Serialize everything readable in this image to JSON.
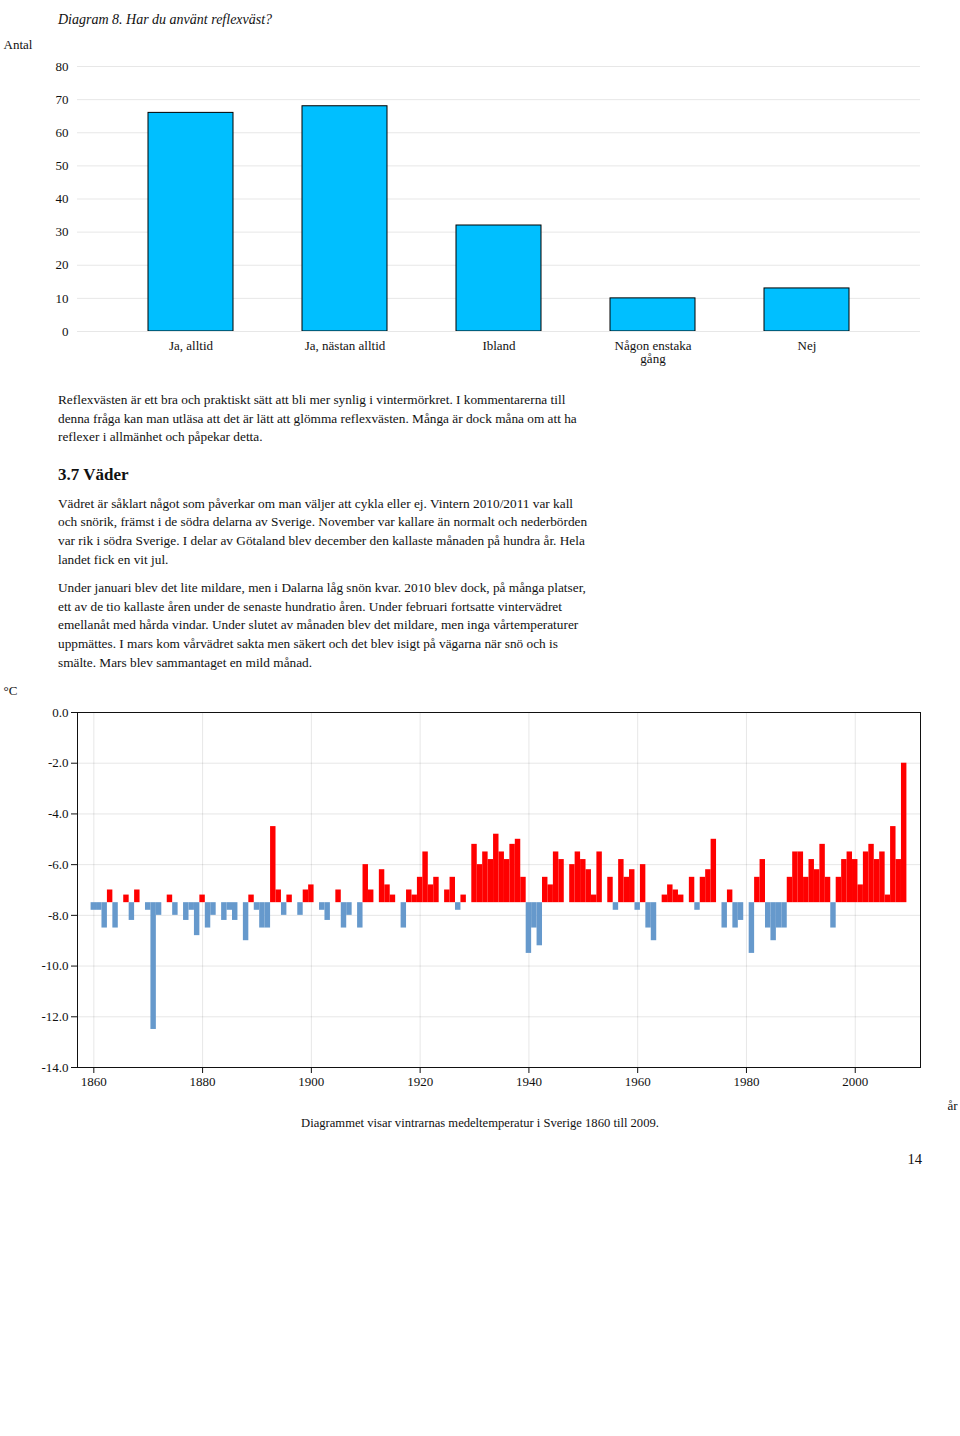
{
  "page_title": "Diagram 8. Har du använt reflexväst?",
  "text_block1": "Reflexvästen är ett bra och praktiskt sätt att bli mer synlig i vintermörkret. I kommentarerna till\ndenna fråga kan man utläsa att det är lätt att glömma reflexvästen. Många är dock måna om att ha\nreflexer i allmänhet och påpekar detta.",
  "section_title": "3.7 Väder",
  "text_block2": "Vädret är såklart något som påverkar om man väljer att cykla eller ej. Vintern 2010/2011 var kall\noch snörik, främst i de södra delarna av Sverige. November var kallare än normalt och nederbörden\nvar rik i södra Sverige. I delar av Götaland blev december den kallaste månaden på hundra år. Hela\nlandet fick en vit jul.",
  "text_block3": "Under januari blev det lite mildare, men i Dalarna låg snön kvar. 2010 blev dock, på många platser,\nett av de tio kallaste åren under de senaste hundratio åren. Under februari fortsatte vintervädret\nemellanåt med hårda vindar. Under slutet av månaden blev det mildare, men inga vårtemperaturer\nuppmättes. I mars kom vårvädret sakta men säkert och det blev isigt på vägarna när snö och is\nsmälte. Mars blev sammantaget en mild månad.",
  "page_number": "14",
  "chart_data": [
    {
      "type": "bar",
      "categories": [
        "Ja, alltid",
        "Ja, nästan alltid",
        "Ibland",
        "Någon enstaka\ngång",
        "Nej"
      ],
      "values": [
        66,
        68,
        32,
        10,
        13
      ],
      "color": "#00BFFF",
      "ylabel": "Antal",
      "ylim": [
        0,
        80
      ],
      "yticks": [
        0,
        10,
        20,
        30,
        40,
        50,
        60,
        70,
        80
      ],
      "grid": "y"
    },
    {
      "type": "bar",
      "x": [
        1860,
        1861,
        1862,
        1863,
        1864,
        1865,
        1866,
        1867,
        1868,
        1869,
        1870,
        1871,
        1872,
        1873,
        1874,
        1875,
        1876,
        1877,
        1878,
        1879,
        1880,
        1881,
        1882,
        1883,
        1884,
        1885,
        1886,
        1887,
        1888,
        1889,
        1890,
        1891,
        1892,
        1893,
        1894,
        1895,
        1896,
        1897,
        1898,
        1899,
        1900,
        1901,
        1902,
        1903,
        1904,
        1905,
        1906,
        1907,
        1908,
        1909,
        1910,
        1911,
        1912,
        1913,
        1914,
        1915,
        1916,
        1917,
        1918,
        1919,
        1920,
        1921,
        1922,
        1923,
        1924,
        1925,
        1926,
        1927,
        1928,
        1929,
        1930,
        1931,
        1932,
        1933,
        1934,
        1935,
        1936,
        1937,
        1938,
        1939,
        1940,
        1941,
        1942,
        1943,
        1944,
        1945,
        1946,
        1947,
        1948,
        1949,
        1950,
        1951,
        1952,
        1953,
        1954,
        1955,
        1956,
        1957,
        1958,
        1959,
        1960,
        1961,
        1962,
        1963,
        1964,
        1965,
        1966,
        1967,
        1968,
        1969,
        1970,
        1971,
        1972,
        1973,
        1974,
        1975,
        1976,
        1977,
        1978,
        1979,
        1980,
        1981,
        1982,
        1983,
        1984,
        1985,
        1986,
        1987,
        1988,
        1989,
        1990,
        1991,
        1992,
        1993,
        1994,
        1995,
        1996,
        1997,
        1998,
        1999,
        2000,
        2001,
        2002,
        2003,
        2004,
        2005,
        2006,
        2007,
        2008,
        2009
      ],
      "values": [
        -7.8,
        -7.8,
        -8.5,
        -7.0,
        -8.5,
        -7.5,
        -7.2,
        -8.2,
        -7.0,
        -7.5,
        -7.8,
        -12.5,
        -8.0,
        -7.5,
        -7.2,
        -8.0,
        -7.5,
        -8.2,
        -7.8,
        -8.8,
        -7.2,
        -8.5,
        -8.0,
        -7.5,
        -8.2,
        -7.8,
        -8.2,
        -7.5,
        -9.0,
        -7.2,
        -7.8,
        -8.5,
        -8.5,
        -4.5,
        -7.0,
        -8.0,
        -7.2,
        -7.5,
        -8.0,
        -7.0,
        -6.8,
        -7.5,
        -7.8,
        -8.2,
        -7.5,
        -7.0,
        -8.5,
        -8.0,
        -7.5,
        -8.5,
        -6.0,
        -7.0,
        -7.5,
        -6.2,
        -6.8,
        -7.2,
        -7.5,
        -8.5,
        -7.0,
        -7.2,
        -6.5,
        -5.5,
        -6.8,
        -6.5,
        -7.5,
        -7.0,
        -6.5,
        -7.8,
        -7.2,
        -7.5,
        -5.2,
        -6.0,
        -5.5,
        -5.8,
        -4.8,
        -5.5,
        -5.8,
        -5.2,
        -5.0,
        -6.5,
        -9.5,
        -8.5,
        -9.2,
        -6.5,
        -6.8,
        -5.5,
        -5.8,
        -7.5,
        -6.0,
        -5.5,
        -5.8,
        -6.2,
        -7.2,
        -5.5,
        -7.5,
        -6.5,
        -7.8,
        -5.8,
        -6.5,
        -6.2,
        -7.8,
        -6.0,
        -8.5,
        -9.0,
        -7.5,
        -7.2,
        -6.8,
        -7.0,
        -7.2,
        -7.5,
        -6.5,
        -7.8,
        -6.5,
        -6.2,
        -5.0,
        -7.5,
        -8.5,
        -7.0,
        -8.5,
        -8.2,
        -7.5,
        -9.5,
        -6.5,
        -5.8,
        -8.5,
        -9.0,
        -8.5,
        -8.5,
        -6.5,
        -5.5,
        -5.5,
        -6.5,
        -5.8,
        -6.2,
        -5.2,
        -6.5,
        -8.5,
        -6.5,
        -5.8,
        -5.5,
        -5.8,
        -6.8,
        -5.5,
        -5.2,
        -5.8,
        -5.5,
        -7.2,
        -4.5,
        -5.8,
        -2.0
      ],
      "baseline": -7.5,
      "colors": [
        "#6699CC",
        "#6699CC",
        "#6699CC",
        "red",
        "#6699CC",
        "red",
        "red",
        "#6699CC",
        "red",
        "red",
        "#6699CC",
        "#6699CC",
        "#6699CC",
        "red",
        "red",
        "#6699CC",
        "red",
        "#6699CC",
        "#6699CC",
        "#6699CC",
        "red",
        "#6699CC",
        "#6699CC",
        "red",
        "#6699CC",
        "#6699CC",
        "#6699CC",
        "red",
        "#6699CC",
        "red",
        "#6699CC",
        "#6699CC",
        "#6699CC",
        "red",
        "red",
        "#6699CC",
        "red",
        "red",
        "#6699CC",
        "red",
        "red",
        "red",
        "#6699CC",
        "#6699CC",
        "red",
        "red",
        "#6699CC",
        "#6699CC",
        "red",
        "#6699CC",
        "red",
        "red",
        "red",
        "red",
        "red",
        "red",
        "red",
        "#6699CC",
        "red",
        "red",
        "red",
        "red",
        "red",
        "red",
        "red",
        "red",
        "red",
        "#6699CC",
        "red",
        "red",
        "red",
        "red",
        "red",
        "red",
        "red",
        "red",
        "red",
        "red",
        "red",
        "red",
        "#6699CC",
        "#6699CC",
        "#6699CC",
        "red",
        "red",
        "red",
        "red",
        "red",
        "red",
        "red",
        "red",
        "red",
        "red",
        "red",
        "red",
        "red",
        "#6699CC",
        "red",
        "red",
        "red",
        "#6699CC",
        "red",
        "#6699CC",
        "#6699CC",
        "red",
        "red",
        "red",
        "red",
        "red",
        "red",
        "red",
        "#6699CC",
        "red",
        "red",
        "red",
        "red",
        "#6699CC",
        "red",
        "#6699CC",
        "#6699CC",
        "red",
        "#6699CC",
        "red",
        "red",
        "#6699CC",
        "#6699CC",
        "#6699CC",
        "#6699CC",
        "red",
        "red",
        "red",
        "red",
        "red",
        "red",
        "red",
        "red",
        "#6699CC",
        "red",
        "red",
        "red",
        "red",
        "red",
        "red",
        "red",
        "red",
        "red",
        "red",
        "red",
        "red",
        "red"
      ],
      "xlabel": "år",
      "ylabel": "°C",
      "xlim": [
        1857,
        2012
      ],
      "ylim": [
        -14.0,
        0.0
      ],
      "xticks": [
        1860,
        1880,
        1900,
        1920,
        1940,
        1960,
        1980,
        2000
      ],
      "yticks": [
        {
          "value": 0.0,
          "label": "0.0"
        },
        {
          "value": -2.0,
          "label": "-2.0"
        },
        {
          "value": -4.0,
          "label": "-4.0"
        },
        {
          "value": -6.0,
          "label": "-6.0"
        },
        {
          "value": -8.0,
          "label": "-8.0"
        },
        {
          "value": -10.0,
          "label": "-10.0"
        },
        {
          "value": -12.0,
          "label": "-12.0"
        },
        {
          "value": -14.0,
          "label": "-14.0"
        }
      ],
      "grid": true,
      "caption": "Diagrammet visar vintrarnas medeltemperatur i Sverige 1860 till 2009."
    }
  ]
}
